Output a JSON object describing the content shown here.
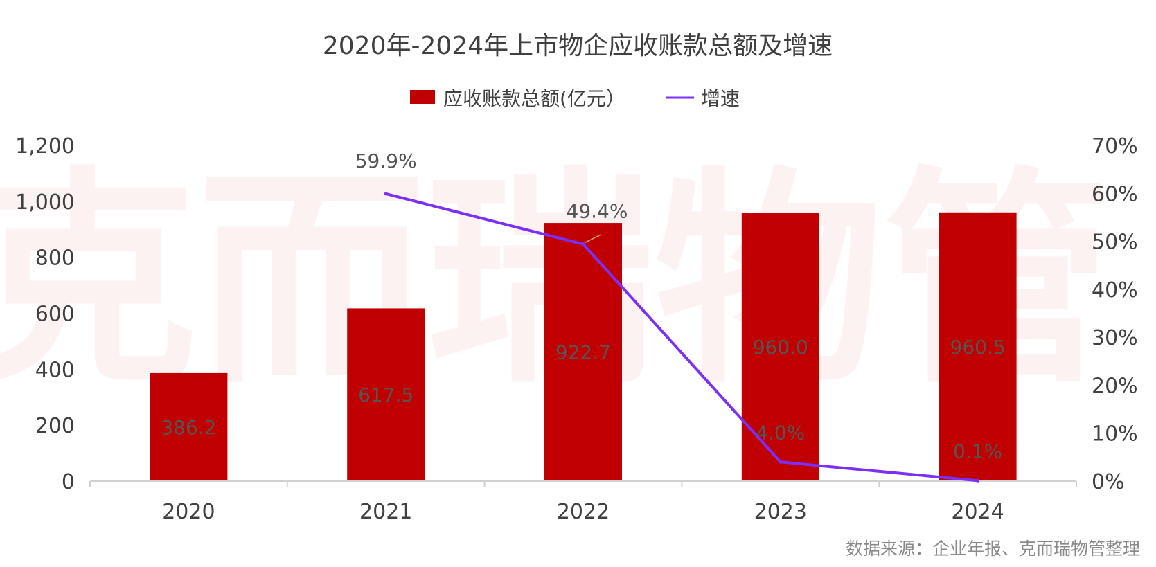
{
  "chart_data": {
    "type": "bar",
    "title": "2020年-2024年上市物企应收账款总额及增速",
    "categories": [
      "2020",
      "2021",
      "2022",
      "2023",
      "2024"
    ],
    "series": [
      {
        "name": "应收账款总额(亿元）",
        "type": "bar",
        "axis": "left",
        "values": [
          386.2,
          617.5,
          922.7,
          960.0,
          960.5
        ],
        "labels": [
          "386.2",
          "617.5",
          "922.7",
          "960.0",
          "960.5"
        ],
        "color": "#c00000"
      },
      {
        "name": "增速",
        "type": "line",
        "axis": "right",
        "values": [
          null,
          59.9,
          49.4,
          4.0,
          0.1
        ],
        "labels": [
          "",
          "59.9%",
          "49.4%",
          "4.0%",
          "0.1%"
        ],
        "color": "#7b2ff7"
      }
    ],
    "ylim": [
      0,
      1200
    ],
    "y_ticks": [
      "0",
      "200",
      "400",
      "600",
      "800",
      "1,000",
      "1,200"
    ],
    "y2lim": [
      0,
      70
    ],
    "y2_ticks": [
      "0%",
      "10%",
      "20%",
      "30%",
      "40%",
      "50%",
      "60%",
      "70%"
    ],
    "grid": false,
    "legend_position": "top-center"
  },
  "watermark": "克而瑞物管",
  "source": "数据来源：企业年报、克而瑞物管整理"
}
